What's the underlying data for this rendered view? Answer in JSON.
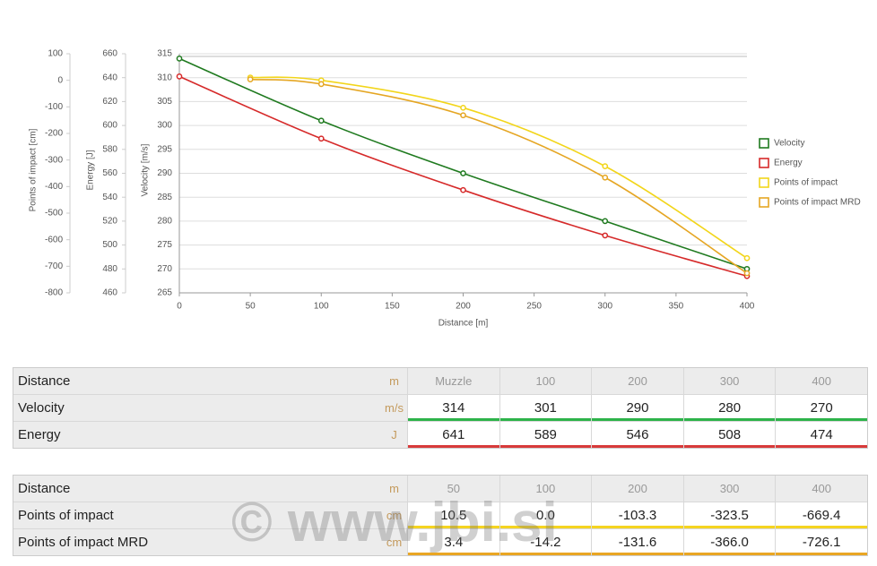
{
  "chart_data": {
    "type": "line",
    "xlabel": "Distance [m]",
    "ylabel": "Velocity [m/s]",
    "y2label": "Energy [J]",
    "y3label": "Points of impact [cm]",
    "xlim": [
      0,
      400
    ],
    "xticks": [
      0,
      50,
      100,
      150,
      200,
      250,
      300,
      350,
      400
    ],
    "ylim": [
      265,
      315
    ],
    "yticks": [
      265,
      270,
      275,
      280,
      285,
      290,
      295,
      300,
      305,
      310,
      315
    ],
    "y2lim": [
      460,
      660
    ],
    "y2ticks": [
      460,
      480,
      500,
      520,
      540,
      560,
      580,
      600,
      620,
      640,
      660
    ],
    "y3lim": [
      -800,
      100
    ],
    "y3ticks": [
      -800,
      -700,
      -600,
      -500,
      -400,
      -300,
      -200,
      -100,
      0,
      100
    ],
    "grid": true,
    "legend": "right",
    "series": [
      {
        "name": "Velocity",
        "color": "#1f7a1f",
        "x": [
          0,
          100,
          200,
          300,
          400
        ],
        "values": [
          314,
          301,
          290,
          280,
          270
        ]
      },
      {
        "name": "Energy",
        "color": "#d62a2a",
        "axis": "y2",
        "x": [
          0,
          100,
          200,
          300,
          400
        ],
        "values": [
          641,
          589,
          546,
          508,
          474
        ]
      },
      {
        "name": "Points of impact",
        "color": "#f2d51a",
        "axis": "y3",
        "x": [
          50,
          100,
          200,
          300,
          400
        ],
        "values": [
          10.5,
          0,
          -103.3,
          -323.5,
          -669.4
        ]
      },
      {
        "name": "Points of impact MRD",
        "color": "#e5a623",
        "axis": "y3",
        "x": [
          50,
          100,
          200,
          300,
          400
        ],
        "values": [
          3.4,
          -14.2,
          -131.6,
          -366,
          -726.1
        ]
      }
    ]
  },
  "tables": [
    {
      "header": [
        "Distance",
        "m",
        "Muzzle",
        "100",
        "200",
        "300",
        "400"
      ],
      "rows": [
        [
          "Velocity",
          "m/s",
          "314",
          "301",
          "290",
          "280",
          "270"
        ],
        [
          "Energy",
          "J",
          "641",
          "589",
          "546",
          "508",
          "474"
        ]
      ]
    },
    {
      "header": [
        "Distance",
        "m",
        "50",
        "100",
        "200",
        "300",
        "400"
      ],
      "rows": [
        [
          "Points of impact",
          "cm",
          "10.5",
          "0.0",
          "-103.3",
          "-323.5",
          "-669.4"
        ],
        [
          "Points of impact MRD",
          "cm",
          "3.4",
          "-14.2",
          "-131.6",
          "-366.0",
          "-726.1"
        ]
      ]
    }
  ],
  "watermark": "© www.jbi.si"
}
